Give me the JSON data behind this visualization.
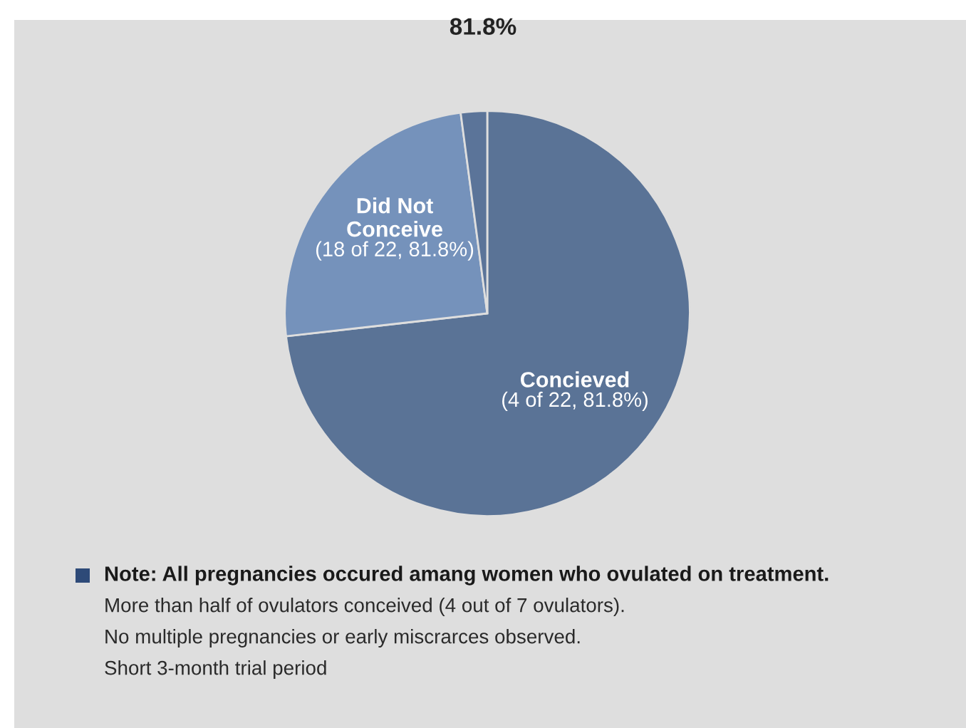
{
  "chart_data": {
    "type": "pie",
    "title": "81.8%",
    "categories": [
      "Concieved\n(4 of 22, 81.8%)",
      "Did Not\nConceive\n(18 of 22, 81.8%)",
      null
    ],
    "values": [
      73.2,
      24.7,
      2.1
    ],
    "colors": [
      "#5a7396",
      "#7592bb",
      "#5b7499"
    ],
    "annotations": [
      "Note: All pregnancies occured amang women who ovulated on treatment.",
      "More than half of ovulators conceived (4 out of 7 ovulators).",
      "No multiple pregnancies or early miscrarces observed.",
      "Short 3-month trial period"
    ]
  }
}
